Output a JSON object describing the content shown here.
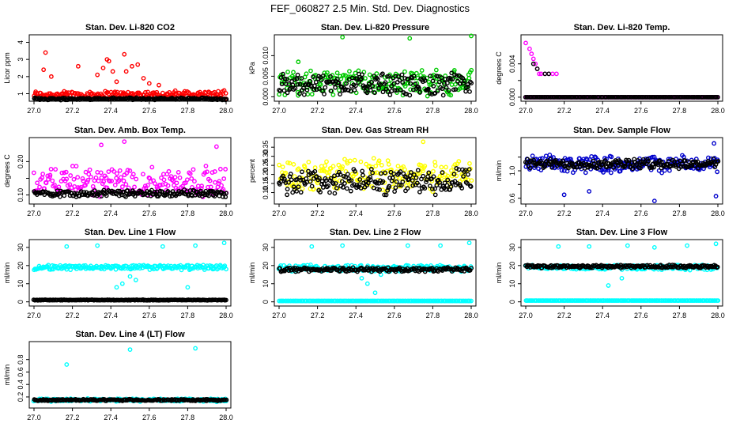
{
  "figure_title": "FEF_060827  2.5 Min. Std. Dev. Diagnostics",
  "chart_data": [
    {
      "type": "scatter",
      "title": "Stan. Dev. Li-820 CO2",
      "ylabel": "Licor ppm",
      "xlim": [
        27.0,
        28.0
      ],
      "ylim": [
        0.7,
        4.3
      ],
      "xticks": [
        "27.0",
        "27.2",
        "27.4",
        "27.6",
        "27.8",
        "28.0"
      ],
      "yticks": [
        1,
        2,
        3,
        4
      ],
      "ytick_labels": [
        "1",
        "2",
        "3",
        "4"
      ],
      "series": [
        {
          "color": "#ff0000",
          "base": 0.95,
          "spread": 0.25,
          "outliers": [
            [
              27.06,
              3.4
            ],
            [
              27.05,
              2.4
            ],
            [
              27.09,
              2.0
            ],
            [
              27.23,
              2.6
            ],
            [
              27.33,
              2.1
            ],
            [
              27.36,
              2.5
            ],
            [
              27.38,
              3.0
            ],
            [
              27.39,
              2.9
            ],
            [
              27.41,
              2.3
            ],
            [
              27.43,
              1.7
            ],
            [
              27.47,
              3.3
            ],
            [
              27.48,
              2.3
            ],
            [
              27.51,
              2.6
            ],
            [
              27.54,
              2.7
            ],
            [
              27.57,
              1.9
            ],
            [
              27.6,
              1.6
            ],
            [
              27.65,
              1.5
            ],
            [
              28.0,
              0.7
            ]
          ]
        },
        {
          "color": "#000000",
          "base": 0.7,
          "spread": 0.08,
          "outliers": []
        }
      ]
    },
    {
      "type": "scatter",
      "title": "Stan. Dev. Li-820 Pressure",
      "ylabel": "kPa",
      "xlim": [
        27.0,
        28.0
      ],
      "ylim": [
        -0.0005,
        0.0145
      ],
      "xticks": [
        "27.0",
        "27.2",
        "27.4",
        "27.6",
        "27.8",
        "28.0"
      ],
      "yticks": [
        0,
        0.005,
        0.01
      ],
      "ytick_labels": [
        "0.000",
        "0.005",
        "0.010"
      ],
      "series": [
        {
          "color": "#00cc00",
          "base": 0.0035,
          "spread": 0.0035,
          "outliers": [
            [
              27.1,
              0.0085
            ],
            [
              27.33,
              0.0145
            ],
            [
              27.68,
              0.0142
            ],
            [
              28.0,
              0.0148
            ]
          ]
        },
        {
          "color": "#000000",
          "base": 0.003,
          "spread": 0.003,
          "outliers": []
        }
      ]
    },
    {
      "type": "scatter",
      "title": "Stan. Dev. Li-820 Temp.",
      "ylabel": "degrees C",
      "xlim": [
        27.0,
        28.0
      ],
      "ylim": [
        -0.0002,
        0.0072
      ],
      "xticks": [
        "27.0",
        "27.2",
        "27.4",
        "27.6",
        "27.8",
        "28.0"
      ],
      "yticks": [
        0,
        0.002,
        0.004
      ],
      "ytick_labels": [
        "0.000",
        "",
        "0.004"
      ],
      "series": [
        {
          "color": "#ff00ff",
          "base": 0.0,
          "spread": 0.0,
          "outliers": [
            [
              27.0,
              0.0065
            ],
            [
              27.02,
              0.0058
            ],
            [
              27.03,
              0.0052
            ],
            [
              27.04,
              0.0046
            ],
            [
              27.05,
              0.004
            ],
            [
              27.06,
              0.0034
            ],
            [
              27.07,
              0.0028
            ],
            [
              27.08,
              0.0028
            ],
            [
              27.1,
              0.0028
            ],
            [
              27.12,
              0.0028
            ],
            [
              27.14,
              0.0028
            ],
            [
              27.16,
              0.0028
            ]
          ]
        },
        {
          "color": "#000000",
          "base": 0.0,
          "spread": 0.0,
          "outliers": [
            [
              27.04,
              0.004
            ],
            [
              27.06,
              0.0034
            ],
            [
              27.1,
              0.0028
            ],
            [
              27.12,
              0.0028
            ]
          ]
        }
      ]
    },
    {
      "type": "scatter",
      "title": "Stan. Dev. Amb. Box Temp.",
      "ylabel": "degrees C",
      "xlim": [
        27.0,
        28.0
      ],
      "ylim": [
        0.08,
        0.265
      ],
      "xticks": [
        "27.0",
        "27.2",
        "27.4",
        "27.6",
        "27.8",
        "28.0"
      ],
      "yticks": [
        0.1,
        0.15,
        0.2
      ],
      "ytick_labels": [
        "0.10",
        "",
        "0.20"
      ],
      "series": [
        {
          "color": "#ff00ff",
          "base": 0.14,
          "spread": 0.05,
          "outliers": [
            [
              27.47,
              0.26
            ],
            [
              27.35,
              0.25
            ],
            [
              27.95,
              0.245
            ]
          ]
        },
        {
          "color": "#000000",
          "base": 0.105,
          "spread": 0.012,
          "outliers": []
        }
      ]
    },
    {
      "type": "scatter",
      "title": "Stan. Dev. Gas Stream RH",
      "ylabel": "percent",
      "xlim": [
        27.0,
        28.0
      ],
      "ylim": [
        0.05,
        0.39
      ],
      "xticks": [
        "27.0",
        "27.2",
        "27.4",
        "27.6",
        "27.8",
        "28.0"
      ],
      "yticks": [
        0.1,
        0.15,
        0.2,
        0.25,
        0.3,
        0.35
      ],
      "ytick_labels": [
        "0.10",
        "0.15",
        "0.20",
        "0.25",
        "0.30",
        "0.35"
      ],
      "series": [
        {
          "color": "#ffff00",
          "base": 0.2,
          "spread": 0.1,
          "outliers": [
            [
              27.75,
              0.38
            ]
          ]
        },
        {
          "color": "#000000",
          "base": 0.16,
          "spread": 0.08,
          "outliers": []
        }
      ]
    },
    {
      "type": "scatter",
      "title": "Stan. Dev. Sample Flow",
      "ylabel": "ml/min",
      "xlim": [
        27.0,
        28.0
      ],
      "ylim": [
        0.55,
        1.45
      ],
      "xticks": [
        "27.0",
        "27.2",
        "27.4",
        "27.6",
        "27.8",
        "28.0"
      ],
      "yticks": [
        0.6,
        0.8,
        1.0,
        1.2
      ],
      "ytick_labels": [
        "0.6",
        "",
        "1.0",
        ""
      ],
      "series": [
        {
          "color": "#0000cc",
          "base": 1.1,
          "spread": 0.14,
          "outliers": [
            [
              27.2,
              0.65
            ],
            [
              27.33,
              0.7
            ],
            [
              27.67,
              0.56
            ],
            [
              27.98,
              1.4
            ],
            [
              27.99,
              0.63
            ]
          ]
        },
        {
          "color": "#000000",
          "base": 1.1,
          "spread": 0.08,
          "outliers": []
        }
      ]
    },
    {
      "type": "scatter",
      "title": "Stan. Dev. Line 1 Flow",
      "ylabel": "ml/min",
      "xlim": [
        27.0,
        28.0
      ],
      "ylim": [
        -1,
        33
      ],
      "xticks": [
        "27.0",
        "27.2",
        "27.4",
        "27.6",
        "27.8",
        "28.0"
      ],
      "yticks": [
        0,
        10,
        20,
        30
      ],
      "ytick_labels": [
        "0",
        "10",
        "20",
        "30"
      ],
      "series": [
        {
          "color": "#00ffff",
          "base": 19.0,
          "spread": 1.5,
          "outliers": [
            [
              27.17,
              30.5
            ],
            [
              27.33,
              31
            ],
            [
              27.43,
              8
            ],
            [
              27.46,
              10
            ],
            [
              27.5,
              14
            ],
            [
              27.53,
              12
            ],
            [
              27.67,
              30.5
            ],
            [
              27.8,
              8
            ],
            [
              27.84,
              31
            ],
            [
              27.99,
              32.5
            ]
          ]
        },
        {
          "color": "#000000",
          "base": 1.0,
          "spread": 0.2,
          "outliers": []
        }
      ]
    },
    {
      "type": "scatter",
      "title": "Stan. Dev. Line 2 Flow",
      "ylabel": "ml/min",
      "xlim": [
        27.0,
        28.0
      ],
      "ylim": [
        -1,
        33
      ],
      "xticks": [
        "27.0",
        "27.2",
        "27.4",
        "27.6",
        "27.8",
        "28.0"
      ],
      "yticks": [
        0,
        10,
        20,
        30
      ],
      "ytick_labels": [
        "0",
        "10",
        "20",
        "30"
      ],
      "series": [
        {
          "color": "#00ffff",
          "base": 18.5,
          "spread": 2.0,
          "outliers": [
            [
              27.17,
              30.5
            ],
            [
              27.33,
              31
            ],
            [
              27.43,
              13
            ],
            [
              27.46,
              10
            ],
            [
              27.5,
              5
            ],
            [
              27.53,
              15
            ],
            [
              27.67,
              31
            ],
            [
              27.84,
              31
            ],
            [
              27.99,
              32.5
            ]
          ]
        },
        {
          "color": "#00ffff",
          "base": 0.5,
          "spread": 0.0,
          "outliers": []
        },
        {
          "color": "#000000",
          "base": 17.8,
          "spread": 1.3,
          "outliers": []
        }
      ]
    },
    {
      "type": "scatter",
      "title": "Stan. Dev. Line 3 Flow",
      "ylabel": "ml/min",
      "xlim": [
        27.0,
        28.0
      ],
      "ylim": [
        -1,
        33
      ],
      "xticks": [
        "27.0",
        "27.2",
        "27.4",
        "27.6",
        "27.8",
        "28.0"
      ],
      "yticks": [
        0,
        10,
        20,
        30
      ],
      "ytick_labels": [
        "0",
        "10",
        "20",
        "30"
      ],
      "series": [
        {
          "color": "#00ffff",
          "base": 19.0,
          "spread": 1.5,
          "outliers": [
            [
              27.17,
              30.5
            ],
            [
              27.33,
              30.5
            ],
            [
              27.43,
              9
            ],
            [
              27.5,
              13
            ],
            [
              27.53,
              31
            ],
            [
              27.67,
              30
            ],
            [
              27.84,
              31
            ],
            [
              27.99,
              32
            ]
          ]
        },
        {
          "color": "#00ffff",
          "base": 0.7,
          "spread": 0.0,
          "outliers": []
        },
        {
          "color": "#000000",
          "base": 19.5,
          "spread": 1.0,
          "outliers": []
        }
      ]
    },
    {
      "type": "scatter",
      "title": "Stan. Dev. Line 4 (LT) Flow",
      "ylabel": "ml/min",
      "xlim": [
        27.0,
        28.0
      ],
      "ylim": [
        0.06,
        1.05
      ],
      "xticks": [
        "27.0",
        "27.2",
        "27.4",
        "27.6",
        "27.8",
        "28.0"
      ],
      "yticks": [
        0.2,
        0.4,
        0.6,
        0.8
      ],
      "ytick_labels": [
        "0.2",
        "0.4",
        "0.6",
        "0.8"
      ],
      "series": [
        {
          "color": "#00ffff",
          "base": 0.15,
          "spread": 0.03,
          "outliers": [
            [
              27.17,
              0.72
            ],
            [
              27.5,
              0.96
            ],
            [
              27.84,
              0.98
            ]
          ]
        },
        {
          "color": "#000000",
          "base": 0.15,
          "spread": 0.015,
          "outliers": []
        }
      ]
    }
  ]
}
